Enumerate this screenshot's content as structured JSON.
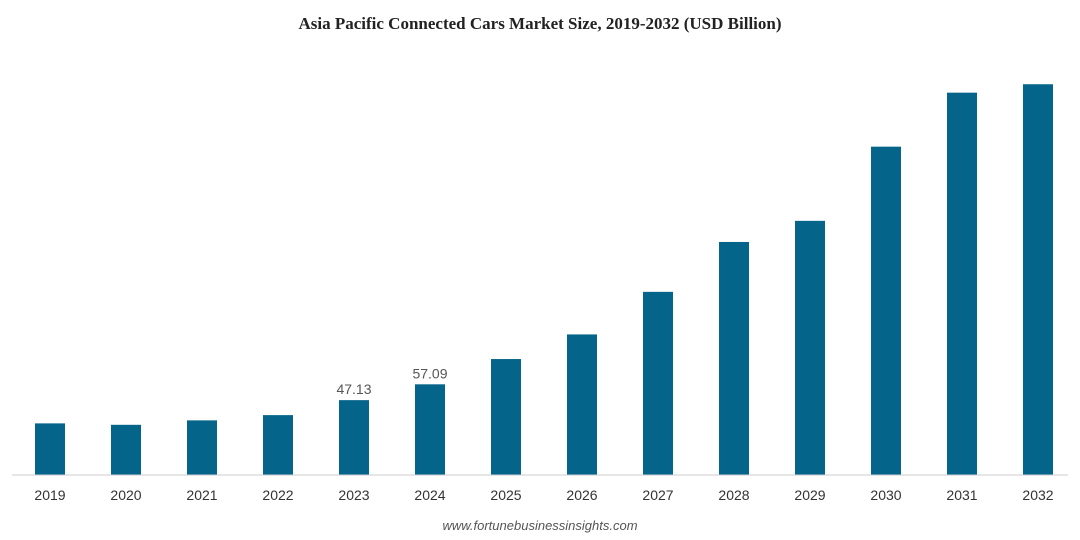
{
  "chart_data": {
    "type": "bar",
    "title": "Asia Pacific Connected Cars Market Size, 2019-2032 (USD Billion)",
    "xlabel": "",
    "ylabel": "",
    "categories": [
      "2019",
      "2020",
      "2021",
      "2022",
      "2023",
      "2024",
      "2025",
      "2026",
      "2027",
      "2028",
      "2029",
      "2030",
      "2031",
      "2032"
    ],
    "values": [
      32.5,
      31.6,
      34.4,
      37.7,
      47.13,
      57.09,
      73.0,
      88.5,
      115.3,
      146.7,
      160.0,
      206.7,
      240.7,
      246.0
    ],
    "data_labels": [
      {
        "category": "2023",
        "text": "47.13"
      },
      {
        "category": "2024",
        "text": "57.09"
      }
    ],
    "ylim": [
      0,
      260
    ],
    "bar_color": "#05648a",
    "axis_color": "#cccccc",
    "grid": false,
    "source": "www.fortunebusinessinsights.com"
  }
}
